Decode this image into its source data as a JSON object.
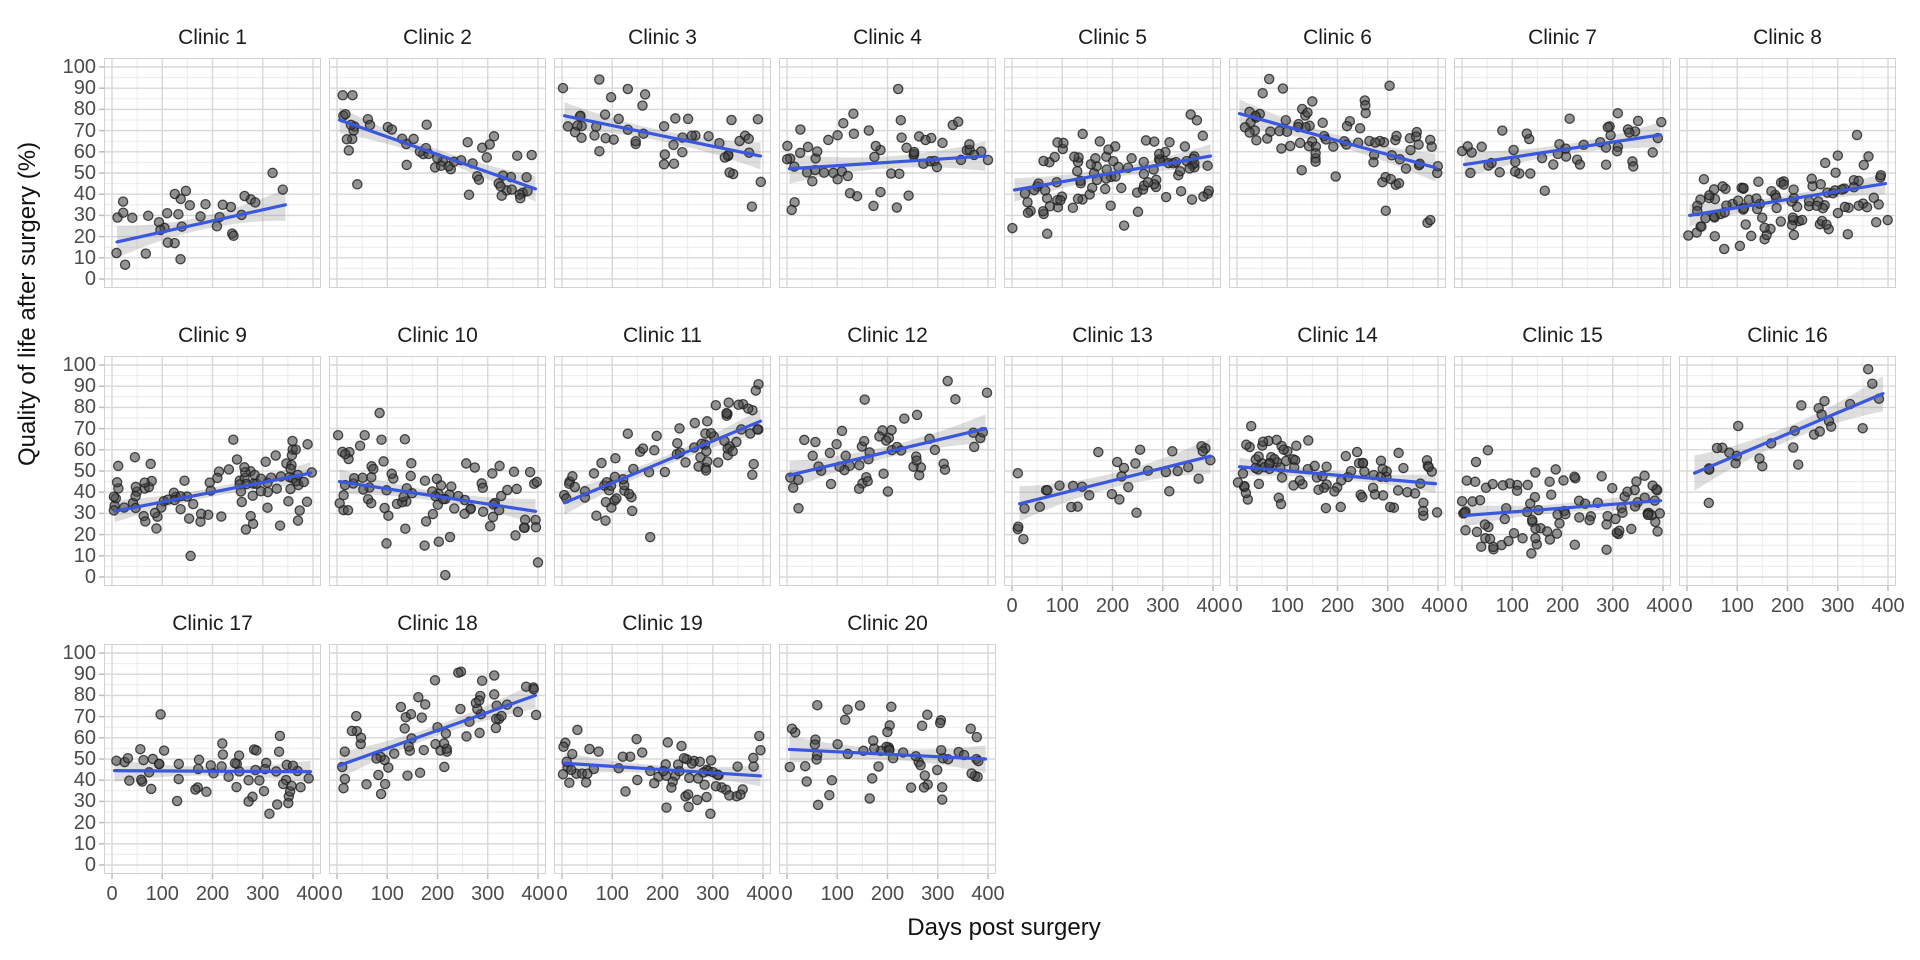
{
  "figure": {
    "xlabel": "Days post surgery",
    "ylabel": "Quality of life after surgery (%)"
  },
  "chart_data": {
    "type": "scatter",
    "facet": {
      "rows": 3,
      "cols": 8,
      "n_panels": 20
    },
    "xlabel": "Days post surgery",
    "ylabel": "Quality of life after surgery (%)",
    "xlim": [
      0,
      400
    ],
    "ylim": [
      0,
      100
    ],
    "x_ticks": [
      0,
      100,
      200,
      300,
      400
    ],
    "y_ticks": [
      0,
      10,
      20,
      30,
      40,
      50,
      60,
      70,
      80,
      90,
      100
    ],
    "x_minor": [
      50,
      150,
      250,
      350
    ],
    "y_minor": [
      5,
      15,
      25,
      35,
      45,
      55,
      65,
      75,
      85,
      95
    ],
    "grid": "major+minor",
    "legend": "none",
    "smoother": "linear-with-confidence-band",
    "panels": [
      {
        "label": "Clinic 1",
        "trend": {
          "x0": 10,
          "x1": 345,
          "y0": 17.5,
          "y1": 35
        },
        "n": 35,
        "sd": 9,
        "seed": 11
      },
      {
        "label": "Clinic 2",
        "trend": {
          "x0": 5,
          "x1": 395,
          "y0": 75,
          "y1": 42.5
        },
        "n": 55,
        "sd": 9,
        "seed": 22
      },
      {
        "label": "Clinic 3",
        "trend": {
          "x0": 5,
          "x1": 395,
          "y0": 77,
          "y1": 58
        },
        "n": 50,
        "sd": 9,
        "seed": 33
      },
      {
        "label": "Clinic 4",
        "trend": {
          "x0": 5,
          "x1": 395,
          "y0": 52,
          "y1": 58
        },
        "n": 60,
        "sd": 11,
        "seed": 44
      },
      {
        "label": "Clinic 5",
        "trend": {
          "x0": 5,
          "x1": 395,
          "y0": 42,
          "y1": 58
        },
        "n": 100,
        "sd": 11,
        "seed": 55
      },
      {
        "label": "Clinic 6",
        "trend": {
          "x0": 5,
          "x1": 395,
          "y0": 78,
          "y1": 52.5
        },
        "n": 80,
        "sd": 12,
        "seed": 66
      },
      {
        "label": "Clinic 7",
        "trend": {
          "x0": 5,
          "x1": 395,
          "y0": 54,
          "y1": 68
        },
        "n": 45,
        "sd": 8,
        "seed": 77
      },
      {
        "label": "Clinic 8",
        "trend": {
          "x0": 5,
          "x1": 395,
          "y0": 30,
          "y1": 45
        },
        "n": 100,
        "sd": 10,
        "seed": 88
      },
      {
        "label": "Clinic 9",
        "trend": {
          "x0": 5,
          "x1": 395,
          "y0": 31,
          "y1": 49
        },
        "n": 95,
        "sd": 10,
        "seed": 99
      },
      {
        "label": "Clinic 10",
        "trend": {
          "x0": 5,
          "x1": 395,
          "y0": 45,
          "y1": 31
        },
        "n": 90,
        "sd": 11,
        "seed": 110
      },
      {
        "label": "Clinic 11",
        "trend": {
          "x0": 5,
          "x1": 395,
          "y0": 35,
          "y1": 73.5
        },
        "n": 80,
        "sd": 10,
        "seed": 121
      },
      {
        "label": "Clinic 12",
        "trend": {
          "x0": 5,
          "x1": 395,
          "y0": 48,
          "y1": 70
        },
        "n": 55,
        "sd": 10,
        "seed": 132
      },
      {
        "label": "Clinic 13",
        "trend": {
          "x0": 15,
          "x1": 395,
          "y0": 34.5,
          "y1": 57
        },
        "n": 35,
        "sd": 10,
        "seed": 143
      },
      {
        "label": "Clinic 14",
        "trend": {
          "x0": 5,
          "x1": 395,
          "y0": 52,
          "y1": 44
        },
        "n": 90,
        "sd": 8,
        "seed": 154
      },
      {
        "label": "Clinic 15",
        "trend": {
          "x0": 5,
          "x1": 395,
          "y0": 29,
          "y1": 36
        },
        "n": 95,
        "sd": 10,
        "seed": 165
      },
      {
        "label": "Clinic 16",
        "trend": {
          "x0": 15,
          "x1": 390,
          "y0": 49,
          "y1": 86.5
        },
        "n": 28,
        "sd": 9,
        "seed": 176
      },
      {
        "label": "Clinic 17",
        "trend": {
          "x0": 5,
          "x1": 395,
          "y0": 44.5,
          "y1": 44
        },
        "n": 60,
        "sd": 8,
        "seed": 187
      },
      {
        "label": "Clinic 18",
        "trend": {
          "x0": 5,
          "x1": 395,
          "y0": 47,
          "y1": 80
        },
        "n": 65,
        "sd": 10,
        "seed": 198
      },
      {
        "label": "Clinic 19",
        "trend": {
          "x0": 5,
          "x1": 395,
          "y0": 48,
          "y1": 42
        },
        "n": 70,
        "sd": 8,
        "seed": 209
      },
      {
        "label": "Clinic 20",
        "trend": {
          "x0": 5,
          "x1": 395,
          "y0": 54.5,
          "y1": 50
        },
        "n": 60,
        "sd": 10,
        "seed": 220
      }
    ],
    "colors": {
      "trend_line": "#3A57DD",
      "confidence_band": "#8a8a8a",
      "confidence_band_opacity": 0.28,
      "point_fill": "#464646",
      "point_fill_opacity": 0.58,
      "point_stroke": "#1e1e1e",
      "point_stroke_opacity": 0.8,
      "grid_major": "#d8d8d8",
      "grid_minor": "#ebebeb",
      "panel_border": "#d2d2d2",
      "axis_tick_mark": "#bdbdbd",
      "tick_text": "#4a4a4a",
      "title_text": "#1c1c1c",
      "background": "#ffffff"
    }
  }
}
